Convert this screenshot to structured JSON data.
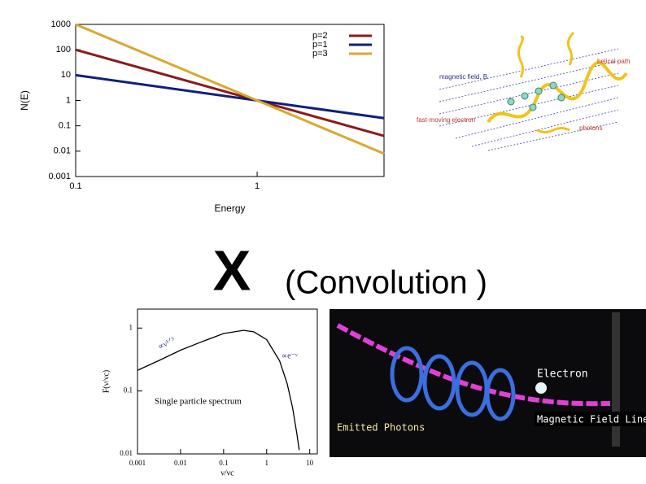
{
  "chart_data": [
    {
      "type": "line",
      "xlabel": "Energy",
      "ylabel": "N(E)",
      "log_x": true,
      "log_y": true,
      "x": [
        0.1,
        5
      ],
      "xlim": [
        0.1,
        5
      ],
      "xticks": [
        0.1,
        1
      ],
      "ylim": [
        0.001,
        1000
      ],
      "yticks": [
        0.001,
        0.01,
        0.1,
        1,
        10,
        100,
        1000
      ],
      "legend": "upper right",
      "series": [
        {
          "name": "p=2",
          "color": "#8b1a1a",
          "values": [
            100,
            0.04
          ]
        },
        {
          "name": "p=1",
          "color": "#10207a",
          "values": [
            10,
            0.2
          ]
        },
        {
          "name": "p=3",
          "color": "#d9a82e",
          "values": [
            1000,
            0.008
          ]
        }
      ]
    },
    {
      "type": "line",
      "xlabel": "ν/νc",
      "ylabel": "F(ν/νc)",
      "log_x": true,
      "log_y": true,
      "annotations": [
        "Single particle spectrum",
        "∝ν¹ᐟ³",
        "∝e⁻ᵛ"
      ],
      "x": [
        0.001,
        0.003,
        0.01,
        0.03,
        0.1,
        0.29,
        0.5,
        1,
        2,
        3,
        4,
        5,
        5.7
      ],
      "values": [
        0.213,
        0.3,
        0.445,
        0.6,
        0.818,
        0.918,
        0.872,
        0.655,
        0.301,
        0.13,
        0.054,
        0.0214,
        0.0115
      ],
      "color": "#000000",
      "xlim": [
        0.001,
        15
      ],
      "xticks": [
        0.001,
        0.01,
        0.1,
        1,
        10
      ],
      "ylim": [
        0.01,
        2
      ],
      "yticks": [
        0.01,
        0.1,
        1
      ]
    }
  ],
  "slide": {
    "operator": "X",
    "caption": "(Convolution )"
  },
  "figures": {
    "top": {
      "helical": "helical path",
      "field": "magnetic field, B",
      "electron": "fast-moving electron",
      "photons": "photons"
    },
    "bottom": {
      "electron": "Electron",
      "field": "Magnetic Field Line",
      "photons": "Emitted Photons"
    }
  }
}
